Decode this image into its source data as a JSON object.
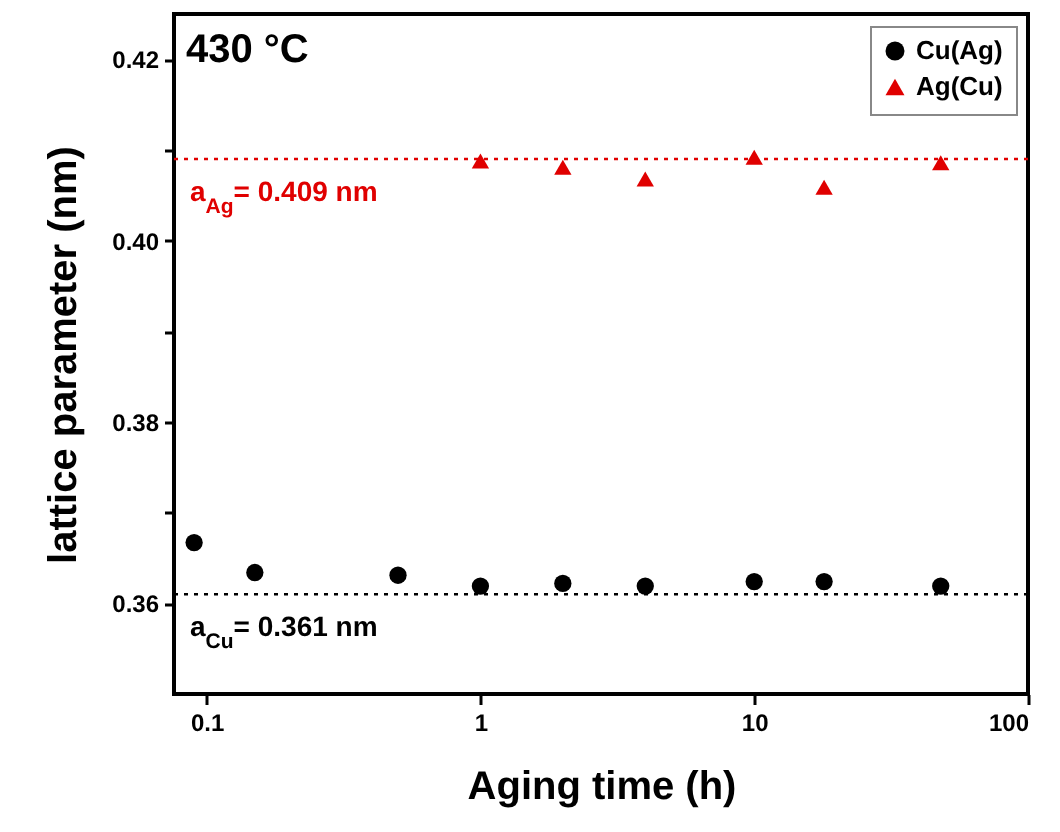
{
  "chart_data": {
    "type": "scatter",
    "xlabel": "Aging time (h)",
    "ylabel": "lattice parameter (nm)",
    "log": "x",
    "xlim": [
      0.076,
      100
    ],
    "xticks": [
      0.1,
      1,
      10,
      100
    ],
    "ylim": [
      0.35,
      0.425
    ],
    "yticks": [
      0.36,
      {
        "value": 0.37,
        "label": null
      },
      0.38,
      {
        "value": 0.39,
        "label": null
      },
      {
        "value": 0.4,
        "label": "0.40"
      },
      {
        "value": 0.41,
        "label": null
      },
      0.42
    ],
    "grid": false,
    "legend": "top right",
    "annotations": [
      "430 °C"
    ],
    "series": [
      {
        "name": "Cu(Ag)",
        "color": "#000000",
        "marker": "circle",
        "x": [
          0.09,
          0.15,
          0.5,
          1,
          2,
          4,
          10,
          18,
          48
        ],
        "values": [
          0.3667,
          0.3634,
          0.3631,
          0.3619,
          0.3622,
          0.3619,
          0.3624,
          0.3624,
          0.3619
        ]
      },
      {
        "name": "Ag(Cu)",
        "color": "#e00000",
        "marker": "triangle",
        "x": [
          1,
          2,
          4,
          10,
          18,
          48
        ],
        "values": [
          0.4088,
          0.4081,
          0.4068,
          0.4092,
          0.4059,
          0.4086
        ]
      }
    ],
    "ref_lines": [
      {
        "axis": "y",
        "value": 0.361,
        "label": "a$_{Cu}$= 0.361 nm",
        "color": "#000000",
        "line_style": "dotted"
      },
      {
        "axis": "y",
        "value": 0.409,
        "label": "a$_{Ag}$= 0.409 nm",
        "color": "#e00000",
        "line_style": "dotted"
      }
    ]
  }
}
